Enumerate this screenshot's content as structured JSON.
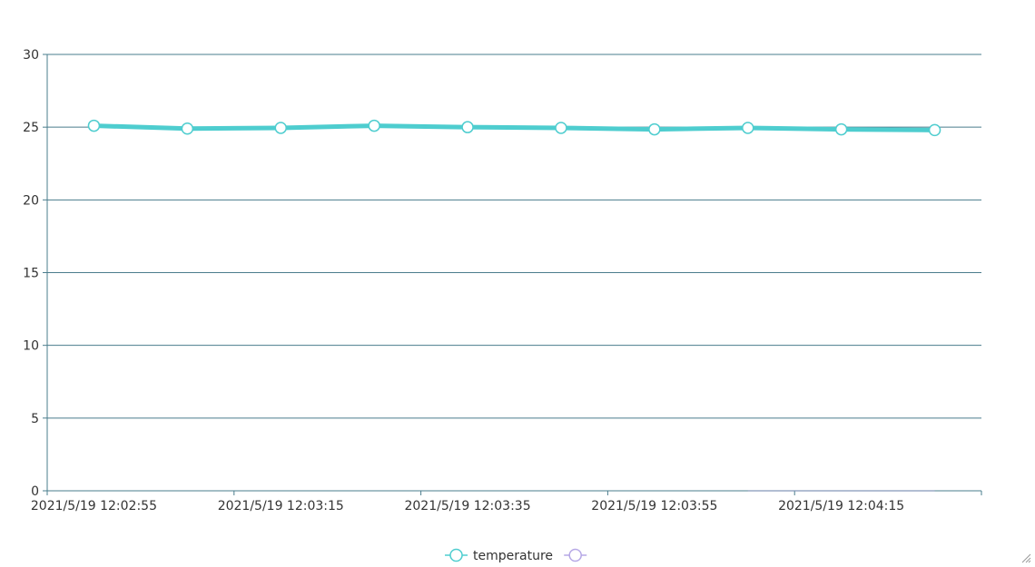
{
  "chart_data": {
    "type": "line",
    "title": "",
    "xlabel": "",
    "ylabel": "",
    "x": [
      "2021/5/19 12:02:55",
      "2021/5/19 12:03:05",
      "2021/5/19 12:03:15",
      "2021/5/19 12:03:25",
      "2021/5/19 12:03:35",
      "2021/5/19 12:03:45",
      "2021/5/19 12:03:55",
      "2021/5/19 12:04:05",
      "2021/5/19 12:04:15",
      "2021/5/19 12:04:25"
    ],
    "x_tick_labels": [
      "2021/5/19 12:02:55",
      "2021/5/19 12:03:15",
      "2021/5/19 12:03:35",
      "2021/5/19 12:03:55",
      "2021/5/19 12:04:15"
    ],
    "ylim": [
      0,
      30
    ],
    "y_ticks": [
      0,
      5,
      10,
      15,
      20,
      25,
      30
    ],
    "grid": true,
    "legend_position": "bottom-center",
    "series": [
      {
        "name": "temperature",
        "color": "#4ecdcf",
        "values": [
          25.1,
          24.9,
          24.95,
          25.1,
          25.0,
          24.95,
          24.85,
          24.95,
          24.85,
          24.8
        ]
      },
      {
        "name": "",
        "color": "#b6a8e6",
        "values": [
          null,
          null,
          null,
          null,
          null,
          null,
          null,
          0,
          0,
          0
        ]
      }
    ],
    "axis_color": "#4a7c8c",
    "text_color": "#333333"
  }
}
